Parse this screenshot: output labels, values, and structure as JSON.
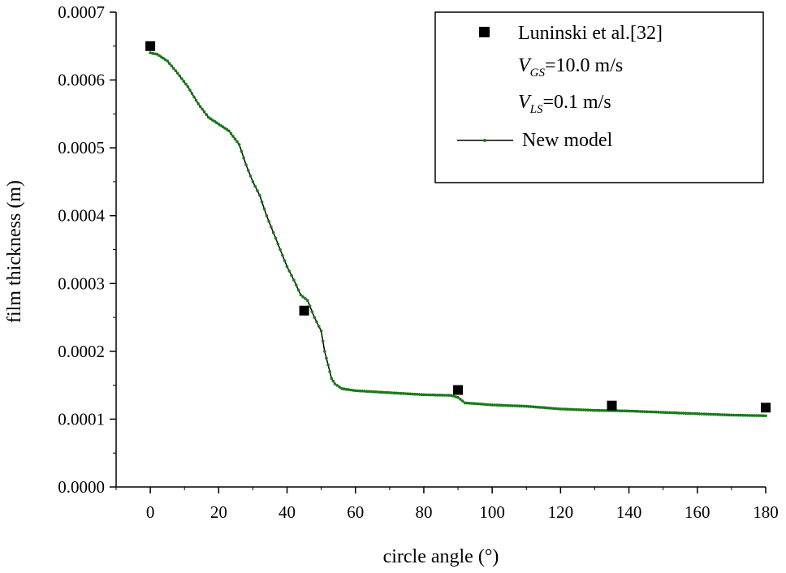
{
  "chart_data": {
    "type": "line",
    "title": "",
    "xlabel": "circle angle (°)",
    "ylabel": "film thickness (m)",
    "xlim": [
      -10,
      180
    ],
    "ylim": [
      0,
      0.0007
    ],
    "xticks": [
      0,
      20,
      40,
      60,
      80,
      100,
      120,
      140,
      160,
      180
    ],
    "xtick_labels": [
      "0",
      "20",
      "40",
      "60",
      "80",
      "100",
      "120",
      "140",
      "160",
      "180"
    ],
    "yticks": [
      0,
      0.0001,
      0.0002,
      0.0003,
      0.0004,
      0.0005,
      0.0006,
      0.0007
    ],
    "ytick_labels": [
      "0.0000",
      "0.0001",
      "0.0002",
      "0.0003",
      "0.0004",
      "0.0005",
      "0.0006",
      "0.0007"
    ],
    "grid": false,
    "legend_position": "top-right",
    "series": [
      {
        "name": "Luninski et al.[32]",
        "kind": "scatter",
        "marker": "square",
        "color": "#000000",
        "x": [
          0,
          45,
          90,
          135,
          180
        ],
        "y": [
          0.00065,
          0.00026,
          0.000143,
          0.00012,
          0.000117
        ]
      },
      {
        "name": "New model",
        "kind": "line",
        "color": "#1a7a1a",
        "line_color": "#000000",
        "x": [
          0,
          2,
          5,
          8,
          11,
          14,
          17,
          20,
          23,
          26,
          28,
          30,
          32,
          34,
          36,
          38,
          40,
          42,
          44,
          46,
          48,
          50,
          51,
          52,
          53,
          54,
          56,
          60,
          70,
          80,
          88,
          90,
          92,
          100,
          110,
          120,
          130,
          140,
          150,
          160,
          170,
          180
        ],
        "y": [
          0.00064,
          0.000638,
          0.000628,
          0.00061,
          0.00059,
          0.000565,
          0.000545,
          0.000535,
          0.000525,
          0.000505,
          0.000475,
          0.00045,
          0.00043,
          0.0004,
          0.000375,
          0.00035,
          0.000325,
          0.000305,
          0.000283,
          0.000275,
          0.00025,
          0.00023,
          0.0002,
          0.00018,
          0.00016,
          0.000152,
          0.000145,
          0.000142,
          0.000139,
          0.000136,
          0.000135,
          0.000132,
          0.000124,
          0.000121,
          0.000119,
          0.000115,
          0.000113,
          0.000112,
          0.00011,
          0.000108,
          0.000106,
          0.000105
        ]
      }
    ],
    "legend": {
      "entries": [
        "Luninski et al.[32]",
        "New model"
      ],
      "condition_1": {
        "symbol": "V",
        "subscript": "GS",
        "value": "=10.0 m/s"
      },
      "condition_2": {
        "symbol": "V",
        "subscript": "LS",
        "value": "=0.1 m/s"
      }
    }
  }
}
